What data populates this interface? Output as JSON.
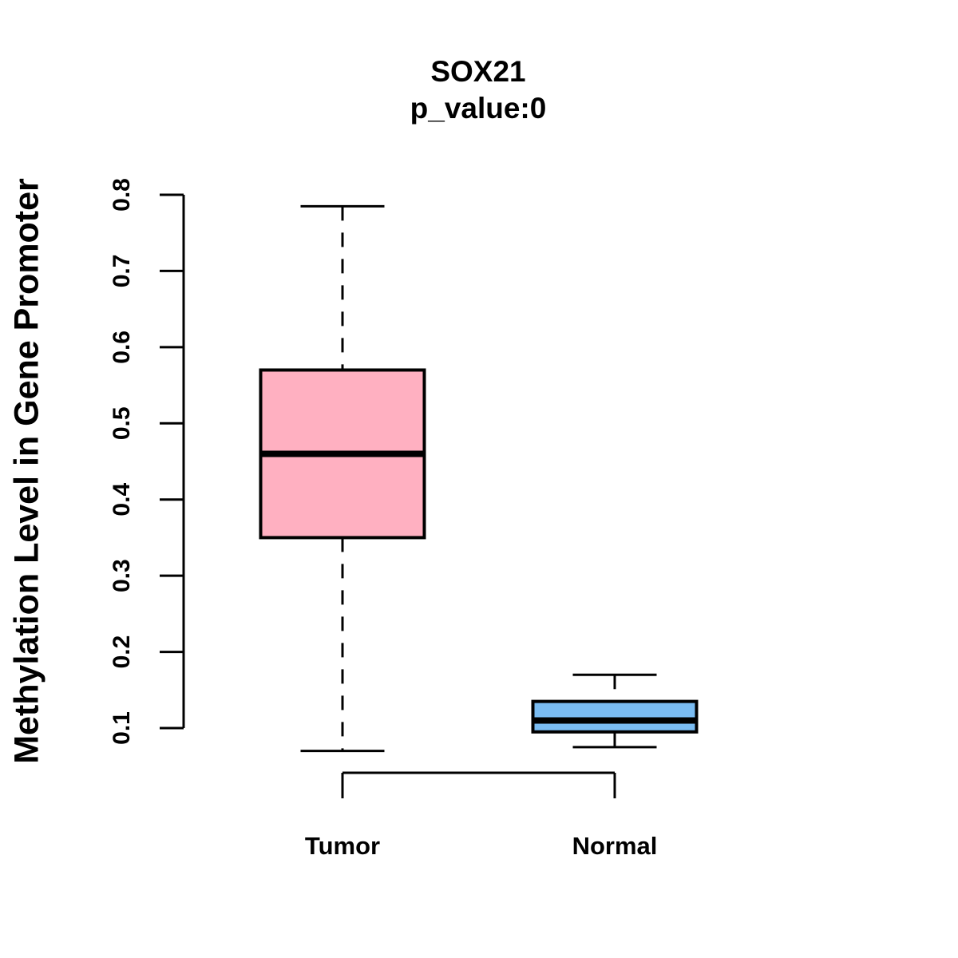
{
  "chart_data": {
    "type": "boxplot",
    "title": "SOX21",
    "subtitle": "p_value:0",
    "ylabel": "Methylation Level in Gene Promoter",
    "xlabel": "",
    "categories": [
      "Tumor",
      "Normal"
    ],
    "y_ticks": [
      0.1,
      0.2,
      0.3,
      0.4,
      0.5,
      0.6,
      0.7,
      0.8
    ],
    "ylim": [
      0.07,
      0.8
    ],
    "grid": false,
    "legend": "none",
    "series": [
      {
        "name": "Tumor",
        "fill_color": "#FFB0C1",
        "whisker_low": 0.07,
        "q1": 0.35,
        "median": 0.46,
        "q3": 0.57,
        "whisker_high": 0.785
      },
      {
        "name": "Normal",
        "fill_color": "#7ABCF2",
        "whisker_low": 0.075,
        "q1": 0.095,
        "median": 0.11,
        "q3": 0.135,
        "whisker_high": 0.17
      }
    ],
    "colors": {
      "stroke": "#000000",
      "background": "#ffffff"
    }
  }
}
